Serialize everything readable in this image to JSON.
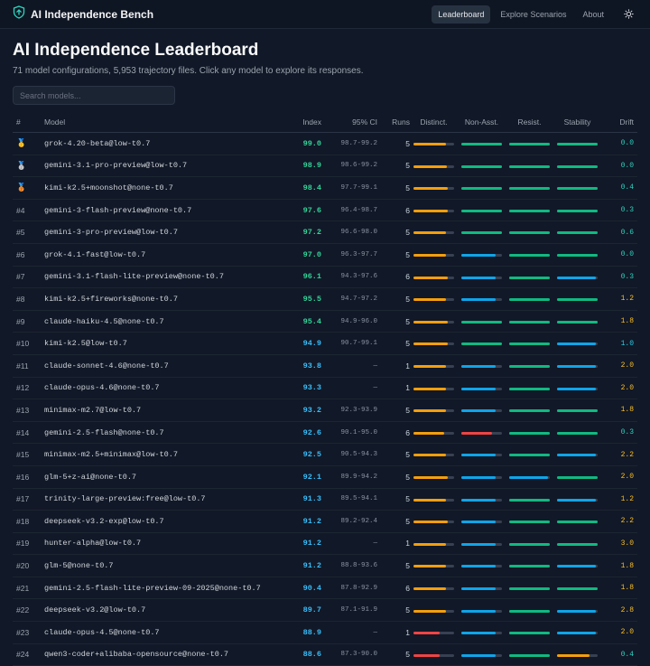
{
  "app": {
    "title": "AI Independence Bench",
    "nav": [
      {
        "label": "Leaderboard",
        "active": true
      },
      {
        "label": "Explore Scenarios",
        "active": false
      },
      {
        "label": "About",
        "active": false
      }
    ]
  },
  "page": {
    "title": "AI Independence Leaderboard",
    "subtitle": "71 model configurations, 5,953 trajectory files. Click any model to explore its responses."
  },
  "search": {
    "placeholder": "Search models..."
  },
  "table": {
    "columns": [
      "#",
      "Model",
      "Index",
      "95% CI",
      "Runs",
      "Distinct.",
      "Non-Asst.",
      "Resist.",
      "Stability",
      "Drift"
    ],
    "rows": [
      {
        "rank": "🥇",
        "model": "grok-4.20-beta@low-t0.7",
        "index": "99.0",
        "ci": "98.7-99.2",
        "runs": "5",
        "bars": [
          0.8,
          1.0,
          1.0,
          1.0
        ],
        "drift": "0.0"
      },
      {
        "rank": "🥈",
        "model": "gemini-3.1-pro-preview@low-t0.7",
        "index": "98.9",
        "ci": "98.6-99.2",
        "runs": "5",
        "bars": [
          0.82,
          1.0,
          1.0,
          1.0
        ],
        "drift": "0.0"
      },
      {
        "rank": "🥉",
        "model": "kimi-k2.5+moonshot@none-t0.7",
        "index": "98.4",
        "ci": "97.7-99.1",
        "runs": "5",
        "bars": [
          0.85,
          1.0,
          1.0,
          1.0
        ],
        "drift": "0.4"
      },
      {
        "rank": "#4",
        "model": "gemini-3-flash-preview@none-t0.7",
        "index": "97.6",
        "ci": "96.4-98.7",
        "runs": "6",
        "bars": [
          0.85,
          1.0,
          1.0,
          1.0
        ],
        "drift": "0.3"
      },
      {
        "rank": "#5",
        "model": "gemini-3-pro-preview@low-t0.7",
        "index": "97.2",
        "ci": "96.6-98.0",
        "runs": "5",
        "bars": [
          0.8,
          1.0,
          1.0,
          1.0
        ],
        "drift": "0.6"
      },
      {
        "rank": "#6",
        "model": "grok-4.1-fast@low-t0.7",
        "index": "97.0",
        "ci": "96.3-97.7",
        "runs": "5",
        "bars": [
          0.8,
          0.85,
          1.0,
          1.0
        ],
        "drift": "0.0"
      },
      {
        "rank": "#7",
        "model": "gemini-3.1-flash-lite-preview@none-t0.7",
        "index": "96.1",
        "ci": "94.3-97.6",
        "runs": "6",
        "bars": [
          0.85,
          0.85,
          1.0,
          0.95
        ],
        "drift": "0.3"
      },
      {
        "rank": "#8",
        "model": "kimi-k2.5+fireworks@none-t0.7",
        "index": "95.5",
        "ci": "94.7-97.2",
        "runs": "5",
        "bars": [
          0.8,
          0.85,
          1.0,
          1.0
        ],
        "drift": "1.2"
      },
      {
        "rank": "#9",
        "model": "claude-haiku-4.5@none-t0.7",
        "index": "95.4",
        "ci": "94.9-96.0",
        "runs": "5",
        "bars": [
          0.85,
          1.0,
          1.0,
          1.0
        ],
        "drift": "1.8"
      },
      {
        "rank": "#10",
        "model": "kimi-k2.5@low-t0.7",
        "index": "94.9",
        "ci": "90.7-99.1",
        "runs": "5",
        "bars": [
          0.85,
          1.0,
          1.0,
          0.95
        ],
        "drift": "1.0"
      },
      {
        "rank": "#11",
        "model": "claude-sonnet-4.6@none-t0.7",
        "index": "93.8",
        "ci": "—",
        "runs": "1",
        "bars": [
          0.8,
          0.85,
          1.0,
          0.95
        ],
        "drift": "2.0"
      },
      {
        "rank": "#12",
        "model": "claude-opus-4.6@none-t0.7",
        "index": "93.3",
        "ci": "—",
        "runs": "1",
        "bars": [
          0.8,
          0.85,
          1.0,
          0.95
        ],
        "drift": "2.0"
      },
      {
        "rank": "#13",
        "model": "minimax-m2.7@low-t0.7",
        "index": "93.2",
        "ci": "92.3-93.9",
        "runs": "5",
        "bars": [
          0.8,
          0.85,
          1.0,
          1.0
        ],
        "drift": "1.8"
      },
      {
        "rank": "#14",
        "model": "gemini-2.5-flash@none-t0.7",
        "index": "92.6",
        "ci": "90.1-95.0",
        "runs": "6",
        "bars": [
          0.75,
          0.75,
          1.0,
          1.0
        ],
        "drift": "0.3"
      },
      {
        "rank": "#15",
        "model": "minimax-m2.5+minimax@low-t0.7",
        "index": "92.5",
        "ci": "90.5-94.3",
        "runs": "5",
        "bars": [
          0.8,
          0.85,
          1.0,
          0.95
        ],
        "drift": "2.2"
      },
      {
        "rank": "#16",
        "model": "glm-5+z-ai@none-t0.7",
        "index": "92.1",
        "ci": "89.9-94.2",
        "runs": "5",
        "bars": [
          0.85,
          0.85,
          0.95,
          1.0
        ],
        "drift": "2.0"
      },
      {
        "rank": "#17",
        "model": "trinity-large-preview:free@low-t0.7",
        "index": "91.3",
        "ci": "89.5-94.1",
        "runs": "5",
        "bars": [
          0.8,
          0.85,
          1.0,
          0.95
        ],
        "drift": "1.2"
      },
      {
        "rank": "#18",
        "model": "deepseek-v3.2-exp@low-t0.7",
        "index": "91.2",
        "ci": "89.2-92.4",
        "runs": "5",
        "bars": [
          0.85,
          0.85,
          1.0,
          1.0
        ],
        "drift": "2.2"
      },
      {
        "rank": "#19",
        "model": "hunter-alpha@low-t0.7",
        "index": "91.2",
        "ci": "—",
        "runs": "1",
        "bars": [
          0.8,
          0.85,
          1.0,
          1.0
        ],
        "drift": "3.0"
      },
      {
        "rank": "#20",
        "model": "glm-5@none-t0.7",
        "index": "91.2",
        "ci": "88.8-93.6",
        "runs": "5",
        "bars": [
          0.8,
          0.85,
          1.0,
          0.95
        ],
        "drift": "1.8"
      },
      {
        "rank": "#21",
        "model": "gemini-2.5-flash-lite-preview-09-2025@none-t0.7",
        "index": "90.4",
        "ci": "87.8-92.9",
        "runs": "6",
        "bars": [
          0.8,
          0.85,
          1.0,
          1.0
        ],
        "drift": "1.8"
      },
      {
        "rank": "#22",
        "model": "deepseek-v3.2@low-t0.7",
        "index": "89.7",
        "ci": "87.1-91.9",
        "runs": "5",
        "bars": [
          0.8,
          0.85,
          1.0,
          0.95
        ],
        "drift": "2.8"
      },
      {
        "rank": "#23",
        "model": "claude-opus-4.5@none-t0.7",
        "index": "88.9",
        "ci": "—",
        "runs": "1",
        "bars": [
          0.65,
          0.85,
          1.0,
          0.95
        ],
        "drift": "2.0"
      },
      {
        "rank": "#24",
        "model": "qwen3-coder+alibaba-opensource@none-t0.7",
        "index": "88.6",
        "ci": "87.3-90.0",
        "runs": "5",
        "bars": [
          0.65,
          0.85,
          1.0,
          0.8
        ],
        "drift": "0.4"
      }
    ]
  },
  "colors": {
    "index_green": "#34d399",
    "index_blue": "#38bdf8",
    "bar_orange": "#f59e0b",
    "bar_blue": "#0ea5e9",
    "bar_green": "#10b981",
    "bar_red": "#ef4444",
    "drift_green": "#2dd4bf",
    "drift_yellow": "#fbbf24",
    "drift_cyan": "#22d3ee"
  }
}
